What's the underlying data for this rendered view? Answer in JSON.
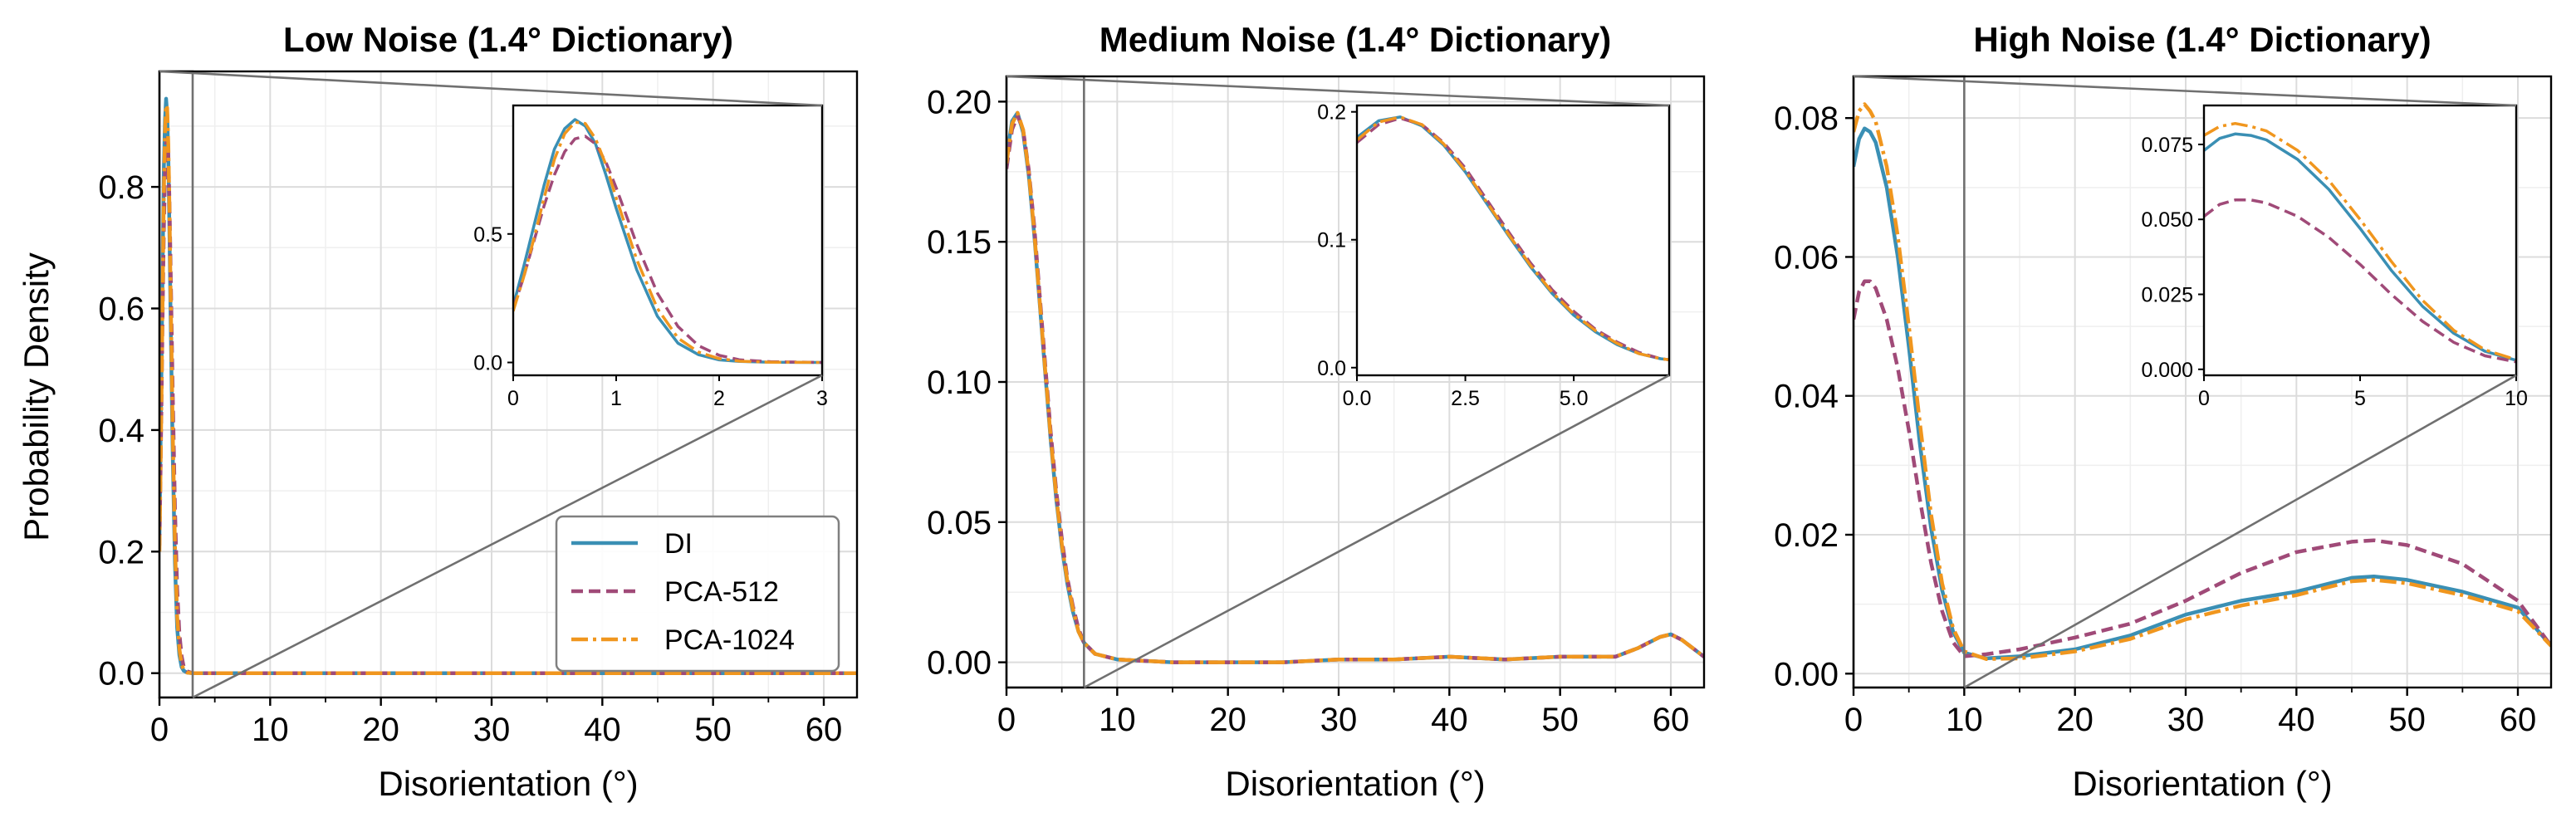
{
  "colors": {
    "DI": "#3a8fb4",
    "PCA-512": "#a04a78",
    "PCA-1024": "#f0961e"
  },
  "chart_data": [
    {
      "type": "line",
      "title": "Low Noise (1.4° Dictionary)",
      "xlabel": "Disorientation (°)",
      "ylabel": "Probability Density",
      "xlim": [
        0,
        63
      ],
      "ylim": [
        -0.04,
        0.99
      ],
      "xticks": [
        0,
        10,
        20,
        30,
        40,
        50,
        60
      ],
      "yticks": [
        0.0,
        0.2,
        0.4,
        0.6,
        0.8
      ],
      "ytick_labels": [
        "0.0",
        "0.2",
        "0.4",
        "0.6",
        "0.8"
      ],
      "grid": true,
      "legend": "lower-right",
      "zoom_xmax": 3,
      "series": [
        {
          "name": "DI",
          "x": [
            0,
            0.1,
            0.2,
            0.3,
            0.4,
            0.5,
            0.6,
            0.7,
            0.8,
            0.9,
            1.0,
            1.2,
            1.4,
            1.6,
            1.8,
            2.0,
            2.2,
            2.5,
            3.0,
            10,
            20,
            30,
            40,
            50,
            60,
            63
          ],
          "y": [
            0.22,
            0.37,
            0.53,
            0.69,
            0.83,
            0.91,
            0.945,
            0.92,
            0.85,
            0.73,
            0.6,
            0.36,
            0.18,
            0.075,
            0.03,
            0.01,
            0.004,
            0.001,
            0,
            0,
            0,
            0,
            0,
            0,
            0,
            0
          ]
        },
        {
          "name": "PCA-512",
          "x": [
            0,
            0.1,
            0.2,
            0.3,
            0.4,
            0.5,
            0.6,
            0.7,
            0.8,
            0.9,
            1.0,
            1.2,
            1.4,
            1.6,
            1.8,
            2.0,
            2.2,
            2.5,
            3.0,
            10,
            20,
            30,
            40,
            50,
            60,
            63
          ],
          "y": [
            0.21,
            0.33,
            0.47,
            0.61,
            0.73,
            0.82,
            0.87,
            0.88,
            0.85,
            0.78,
            0.68,
            0.46,
            0.27,
            0.14,
            0.065,
            0.028,
            0.01,
            0.003,
            0,
            0,
            0,
            0,
            0,
            0,
            0,
            0
          ]
        },
        {
          "name": "PCA-1024",
          "x": [
            0,
            0.1,
            0.2,
            0.3,
            0.4,
            0.5,
            0.6,
            0.7,
            0.8,
            0.9,
            1.0,
            1.2,
            1.4,
            1.6,
            1.8,
            2.0,
            2.2,
            2.5,
            3.0,
            10,
            20,
            30,
            40,
            50,
            60,
            63
          ],
          "y": [
            0.2,
            0.33,
            0.48,
            0.64,
            0.79,
            0.89,
            0.935,
            0.93,
            0.87,
            0.77,
            0.64,
            0.4,
            0.21,
            0.095,
            0.04,
            0.015,
            0.005,
            0.001,
            0,
            0,
            0,
            0,
            0,
            0,
            0,
            0
          ]
        }
      ],
      "inset": {
        "xlim": [
          0,
          3
        ],
        "ylim": [
          -0.05,
          1.0
        ],
        "xticks": [
          0,
          1,
          2,
          3
        ],
        "xtick_labels": [
          "0",
          "1",
          "2",
          "3"
        ],
        "yticks": [
          0.0,
          0.5
        ],
        "ytick_labels": [
          "0.0",
          "0.5"
        ]
      }
    },
    {
      "type": "line",
      "title": "Medium Noise (1.4° Dictionary)",
      "xlabel": "Disorientation (°)",
      "ylabel": "",
      "xlim": [
        0,
        63
      ],
      "ylim": [
        -0.009,
        0.209
      ],
      "xticks": [
        0,
        10,
        20,
        30,
        40,
        50,
        60
      ],
      "yticks": [
        0.0,
        0.05,
        0.1,
        0.15,
        0.2
      ],
      "ytick_labels": [
        "0.00",
        "0.05",
        "0.10",
        "0.15",
        "0.20"
      ],
      "grid": true,
      "zoom_xmax": 7,
      "series": [
        {
          "name": "DI",
          "x": [
            0,
            0.5,
            1.0,
            1.5,
            2.0,
            2.5,
            3.0,
            3.5,
            4.0,
            4.5,
            5.0,
            5.5,
            6.0,
            6.5,
            7.0,
            8,
            10,
            15,
            20,
            25,
            30,
            35,
            40,
            45,
            50,
            55,
            57,
            59,
            60,
            61,
            63
          ],
          "y": [
            0.18,
            0.193,
            0.196,
            0.189,
            0.174,
            0.153,
            0.128,
            0.103,
            0.079,
            0.058,
            0.041,
            0.028,
            0.018,
            0.011,
            0.007,
            0.003,
            0.001,
            0,
            0,
            0,
            0.001,
            0.001,
            0.002,
            0.001,
            0.002,
            0.002,
            0.005,
            0.009,
            0.01,
            0.008,
            0.002
          ]
        },
        {
          "name": "PCA-512",
          "x": [
            0,
            0.5,
            1.0,
            1.5,
            2.0,
            2.5,
            3.0,
            3.5,
            4.0,
            4.5,
            5.0,
            5.5,
            6.0,
            6.5,
            7.0,
            8,
            10,
            15,
            20,
            25,
            30,
            35,
            40,
            45,
            50,
            55,
            57,
            59,
            60,
            61,
            63
          ],
          "y": [
            0.176,
            0.19,
            0.195,
            0.19,
            0.176,
            0.156,
            0.131,
            0.106,
            0.082,
            0.061,
            0.044,
            0.03,
            0.02,
            0.012,
            0.007,
            0.003,
            0.001,
            0,
            0,
            0,
            0.001,
            0.001,
            0.002,
            0.001,
            0.002,
            0.002,
            0.005,
            0.009,
            0.01,
            0.008,
            0.002
          ]
        },
        {
          "name": "PCA-1024",
          "x": [
            0,
            0.5,
            1.0,
            1.5,
            2.0,
            2.5,
            3.0,
            3.5,
            4.0,
            4.5,
            5.0,
            5.5,
            6.0,
            6.5,
            7.0,
            8,
            10,
            15,
            20,
            25,
            30,
            35,
            40,
            45,
            50,
            55,
            57,
            59,
            60,
            61,
            63
          ],
          "y": [
            0.178,
            0.192,
            0.196,
            0.19,
            0.175,
            0.154,
            0.129,
            0.104,
            0.08,
            0.059,
            0.042,
            0.029,
            0.019,
            0.011,
            0.007,
            0.003,
            0.001,
            0,
            0,
            0,
            0.001,
            0.001,
            0.002,
            0.001,
            0.002,
            0.002,
            0.005,
            0.009,
            0.01,
            0.008,
            0.002
          ]
        }
      ],
      "inset": {
        "xlim": [
          0,
          7.2
        ],
        "ylim": [
          -0.006,
          0.205
        ],
        "xticks": [
          0,
          2.5,
          5
        ],
        "xtick_labels": [
          "0.0",
          "2.5",
          "5.0"
        ],
        "yticks": [
          0.0,
          0.1,
          0.2
        ],
        "ytick_labels": [
          "0.0",
          "0.1",
          "0.2"
        ]
      }
    },
    {
      "type": "line",
      "title": "High Noise (1.4° Dictionary)",
      "xlabel": "Disorientation (°)",
      "ylabel": "",
      "xlim": [
        0,
        63
      ],
      "ylim": [
        -0.002,
        0.086
      ],
      "xticks": [
        0,
        10,
        20,
        30,
        40,
        50,
        60
      ],
      "yticks": [
        0.0,
        0.02,
        0.04,
        0.06,
        0.08
      ],
      "ytick_labels": [
        "0.00",
        "0.02",
        "0.04",
        "0.06",
        "0.08"
      ],
      "grid": true,
      "zoom_xmax": 10,
      "series": [
        {
          "name": "DI",
          "x": [
            0,
            0.5,
            1,
            1.5,
            2,
            3,
            4,
            5,
            6,
            7,
            8,
            9,
            10,
            12,
            15,
            20,
            25,
            30,
            35,
            40,
            45,
            47,
            50,
            55,
            60,
            63
          ],
          "y": [
            0.073,
            0.077,
            0.0785,
            0.078,
            0.0765,
            0.07,
            0.06,
            0.047,
            0.033,
            0.021,
            0.012,
            0.006,
            0.003,
            0.0022,
            0.0025,
            0.0035,
            0.0055,
            0.0085,
            0.0105,
            0.0118,
            0.0138,
            0.014,
            0.0135,
            0.0118,
            0.0095,
            0.004
          ]
        },
        {
          "name": "PCA-512",
          "x": [
            0,
            0.5,
            1,
            1.5,
            2,
            3,
            4,
            5,
            6,
            7,
            8,
            9,
            10,
            12,
            15,
            20,
            25,
            30,
            35,
            40,
            45,
            47,
            50,
            55,
            60,
            63
          ],
          "y": [
            0.051,
            0.055,
            0.0565,
            0.0565,
            0.0555,
            0.051,
            0.044,
            0.035,
            0.025,
            0.016,
            0.009,
            0.0045,
            0.0025,
            0.0028,
            0.0035,
            0.0052,
            0.0072,
            0.0105,
            0.0145,
            0.0175,
            0.019,
            0.0192,
            0.0185,
            0.0158,
            0.0105,
            0.004
          ]
        },
        {
          "name": "PCA-1024",
          "x": [
            0,
            0.5,
            1,
            1.5,
            2,
            3,
            4,
            5,
            6,
            7,
            8,
            9,
            10,
            12,
            15,
            20,
            25,
            30,
            35,
            40,
            45,
            47,
            50,
            55,
            60,
            63
          ],
          "y": [
            0.078,
            0.081,
            0.082,
            0.081,
            0.0795,
            0.073,
            0.063,
            0.05,
            0.036,
            0.023,
            0.013,
            0.0065,
            0.0032,
            0.0021,
            0.0022,
            0.0032,
            0.005,
            0.0078,
            0.0098,
            0.0113,
            0.0133,
            0.0135,
            0.013,
            0.0113,
            0.009,
            0.004
          ]
        }
      ],
      "inset": {
        "xlim": [
          0,
          10
        ],
        "ylim": [
          -0.002,
          0.088
        ],
        "xticks": [
          0,
          5,
          10
        ],
        "xtick_labels": [
          "0",
          "5",
          "10"
        ],
        "yticks": [
          0.0,
          0.025,
          0.05,
          0.075
        ],
        "ytick_labels": [
          "0.000",
          "0.025",
          "0.050",
          "0.075"
        ]
      }
    }
  ],
  "legend": {
    "entries": [
      {
        "name": "DI",
        "dash": "solid"
      },
      {
        "name": "PCA-512",
        "dash": "dashed"
      },
      {
        "name": "PCA-1024",
        "dash": "dashdot"
      }
    ]
  }
}
